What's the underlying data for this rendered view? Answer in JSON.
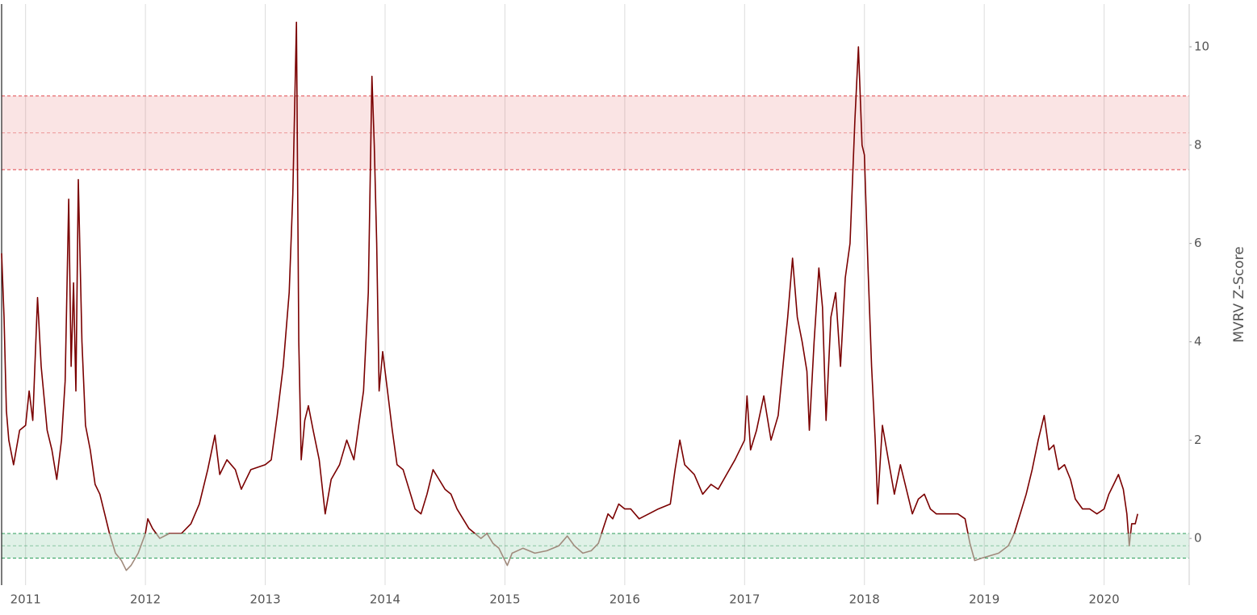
{
  "chart_data": {
    "type": "line",
    "y_axis_label": "MVRV Z-Score",
    "xlim": [
      2010.8,
      2020.71
    ],
    "ylim": [
      -0.95,
      10.87
    ],
    "xticks": [
      2011,
      2012,
      2013,
      2014,
      2015,
      2016,
      2017,
      2018,
      2019,
      2020
    ],
    "yticks": [
      0,
      2,
      4,
      6,
      8,
      10
    ],
    "grid": true,
    "bands": [
      {
        "range": [
          7.5,
          9
        ],
        "color": "#e0474c"
      },
      {
        "range": [
          -0.4,
          0.1
        ],
        "color": "#2e9e5b"
      }
    ],
    "series": [
      {
        "color": "#7a0000",
        "low_color": "#a08a7c",
        "x": [
          2010.8,
          2010.82,
          2010.84,
          2010.86,
          2010.9,
          2010.95,
          2011.0,
          2011.03,
          2011.06,
          2011.1,
          2011.13,
          2011.18,
          2011.22,
          2011.26,
          2011.3,
          2011.33,
          2011.36,
          2011.38,
          2011.4,
          2011.42,
          2011.44,
          2011.47,
          2011.5,
          2011.54,
          2011.58,
          2011.62,
          2011.66,
          2011.7,
          2011.75,
          2011.8,
          2011.84,
          2011.88,
          2011.94,
          2012.0,
          2012.02,
          2012.06,
          2012.12,
          2012.2,
          2012.3,
          2012.38,
          2012.45,
          2012.52,
          2012.58,
          2012.62,
          2012.68,
          2012.75,
          2012.8,
          2012.88,
          2013.0,
          2013.05,
          2013.1,
          2013.15,
          2013.2,
          2013.23,
          2013.26,
          2013.28,
          2013.3,
          2013.33,
          2013.36,
          2013.4,
          2013.45,
          2013.5,
          2013.55,
          2013.62,
          2013.68,
          2013.74,
          2013.78,
          2013.82,
          2013.86,
          2013.89,
          2013.91,
          2013.93,
          2013.95,
          2013.98,
          2014.02,
          2014.06,
          2014.1,
          2014.15,
          2014.2,
          2014.25,
          2014.3,
          2014.35,
          2014.4,
          2014.45,
          2014.5,
          2014.55,
          2014.6,
          2014.65,
          2014.7,
          2014.75,
          2014.8,
          2014.85,
          2014.9,
          2014.95,
          2015.02,
          2015.06,
          2015.15,
          2015.25,
          2015.35,
          2015.45,
          2015.52,
          2015.58,
          2015.65,
          2015.72,
          2015.78,
          2015.82,
          2015.86,
          2015.9,
          2015.95,
          2016.0,
          2016.05,
          2016.12,
          2016.2,
          2016.28,
          2016.38,
          2016.42,
          2016.46,
          2016.5,
          2016.58,
          2016.65,
          2016.72,
          2016.78,
          2016.85,
          2016.92,
          2017.0,
          2017.02,
          2017.05,
          2017.1,
          2017.16,
          2017.22,
          2017.28,
          2017.32,
          2017.36,
          2017.4,
          2017.44,
          2017.48,
          2017.52,
          2017.54,
          2017.58,
          2017.62,
          2017.65,
          2017.68,
          2017.72,
          2017.76,
          2017.8,
          2017.84,
          2017.88,
          2017.92,
          2017.95,
          2017.98,
          2018.0,
          2018.03,
          2018.06,
          2018.09,
          2018.11,
          2018.15,
          2018.2,
          2018.25,
          2018.3,
          2018.35,
          2018.4,
          2018.45,
          2018.5,
          2018.55,
          2018.6,
          2018.7,
          2018.78,
          2018.84,
          2018.88,
          2018.92,
          2018.98,
          2019.05,
          2019.12,
          2019.2,
          2019.25,
          2019.3,
          2019.35,
          2019.4,
          2019.45,
          2019.5,
          2019.54,
          2019.58,
          2019.62,
          2019.67,
          2019.72,
          2019.76,
          2019.82,
          2019.88,
          2019.94,
          2020.0,
          2020.04,
          2020.08,
          2020.12,
          2020.16,
          2020.19,
          2020.21,
          2020.23,
          2020.26,
          2020.28
        ],
        "values": [
          5.8,
          4.5,
          2.6,
          2.0,
          1.5,
          2.2,
          2.3,
          3.0,
          2.4,
          4.9,
          3.5,
          2.2,
          1.8,
          1.2,
          2.0,
          3.2,
          6.9,
          3.5,
          5.2,
          3.0,
          7.3,
          4.0,
          2.3,
          1.8,
          1.1,
          0.9,
          0.5,
          0.1,
          -0.3,
          -0.45,
          -0.65,
          -0.55,
          -0.3,
          0.1,
          0.4,
          0.2,
          0.0,
          0.1,
          0.1,
          0.3,
          0.7,
          1.4,
          2.1,
          1.3,
          1.6,
          1.4,
          1.0,
          1.4,
          1.5,
          1.6,
          2.5,
          3.5,
          5.0,
          7.0,
          10.5,
          4.0,
          1.6,
          2.4,
          2.7,
          2.2,
          1.6,
          0.5,
          1.2,
          1.5,
          2.0,
          1.6,
          2.3,
          3.0,
          5.0,
          9.4,
          8.0,
          6.0,
          3.0,
          3.8,
          3.0,
          2.2,
          1.5,
          1.4,
          1.0,
          0.6,
          0.5,
          0.9,
          1.4,
          1.2,
          1.0,
          0.9,
          0.6,
          0.4,
          0.2,
          0.1,
          0.0,
          0.1,
          -0.1,
          -0.2,
          -0.55,
          -0.3,
          -0.2,
          -0.3,
          -0.25,
          -0.15,
          0.05,
          -0.15,
          -0.3,
          -0.25,
          -0.1,
          0.2,
          0.5,
          0.4,
          0.7,
          0.6,
          0.6,
          0.4,
          0.5,
          0.6,
          0.7,
          1.4,
          2.0,
          1.5,
          1.3,
          0.9,
          1.1,
          1.0,
          1.3,
          1.6,
          2.0,
          2.9,
          1.8,
          2.2,
          2.9,
          2.0,
          2.5,
          3.5,
          4.5,
          5.7,
          4.5,
          4.0,
          3.4,
          2.2,
          4.0,
          5.5,
          4.7,
          2.4,
          4.5,
          5.0,
          3.5,
          5.3,
          6.0,
          8.5,
          10.0,
          8.0,
          7.8,
          5.5,
          3.5,
          2.0,
          0.7,
          2.3,
          1.6,
          0.9,
          1.5,
          1.0,
          0.5,
          0.8,
          0.9,
          0.6,
          0.5,
          0.5,
          0.5,
          0.4,
          -0.1,
          -0.45,
          -0.4,
          -0.35,
          -0.3,
          -0.15,
          0.1,
          0.5,
          0.9,
          1.4,
          2.0,
          2.5,
          1.8,
          1.9,
          1.4,
          1.5,
          1.2,
          0.8,
          0.6,
          0.6,
          0.5,
          0.6,
          0.9,
          1.1,
          1.3,
          1.0,
          0.5,
          -0.15,
          0.3,
          0.3,
          0.5
        ]
      }
    ]
  }
}
